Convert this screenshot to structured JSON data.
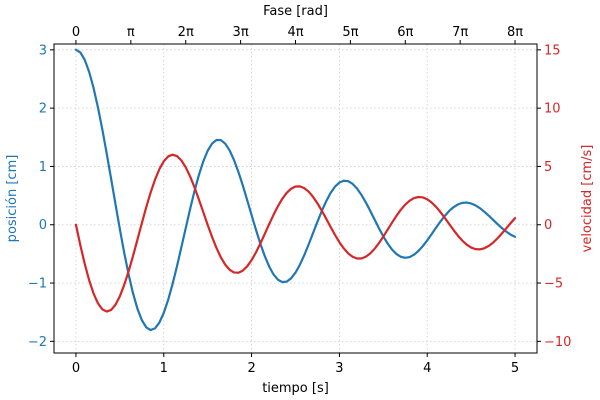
{
  "chart_data": {
    "type": "line",
    "grid": true,
    "x": [
      0,
      0.05,
      0.1,
      0.15,
      0.2,
      0.25,
      0.3,
      0.35,
      0.4,
      0.45,
      0.5,
      0.55,
      0.6,
      0.65,
      0.7,
      0.75,
      0.8,
      0.85,
      0.9,
      0.95,
      1.0,
      1.05,
      1.1,
      1.15,
      1.2,
      1.25,
      1.3,
      1.35,
      1.4,
      1.45,
      1.5,
      1.55,
      1.6,
      1.65,
      1.7,
      1.75,
      1.8,
      1.85,
      1.9,
      1.95,
      2.0,
      2.05,
      2.1,
      2.15,
      2.2,
      2.25,
      2.3,
      2.35,
      2.4,
      2.45,
      2.5,
      2.55,
      2.6,
      2.65,
      2.7,
      2.75,
      2.8,
      2.85,
      2.9,
      2.95,
      3.0,
      3.05,
      3.1,
      3.15,
      3.2,
      3.25,
      3.3,
      3.35,
      3.4,
      3.45,
      3.5,
      3.55,
      3.6,
      3.65,
      3.7,
      3.75,
      3.8,
      3.85,
      3.9,
      3.95,
      4.0,
      4.05,
      4.1,
      4.15,
      4.2,
      4.25,
      4.3,
      4.35,
      4.4,
      4.45,
      4.5,
      4.55,
      4.6,
      4.65,
      4.7,
      4.75,
      4.8,
      4.85,
      4.9,
      4.95,
      5.0
    ],
    "xlabel": "tiempo [s]",
    "xlim": [
      -0.25,
      5.25
    ],
    "x_ticks": [
      "0",
      "1",
      "2",
      "3",
      "4",
      "5"
    ],
    "x_ticks_values": [
      0,
      1,
      2,
      3,
      4,
      5
    ],
    "secondary_x": {
      "label": "Fase [rad]",
      "ticks": [
        "0",
        "π",
        "2π",
        "3π",
        "4π",
        "5π",
        "6π",
        "7π",
        "8π"
      ]
    },
    "series": [
      {
        "name": "posición",
        "axis": "left",
        "color": "#1f77b4",
        "values": [
          3.0,
          2.956,
          2.828,
          2.622,
          2.348,
          2.016,
          1.637,
          1.224,
          0.792,
          0.354,
          -0.076,
          -0.484,
          -0.855,
          -1.177,
          -1.44,
          -1.636,
          -1.759,
          -1.806,
          -1.778,
          -1.678,
          -1.512,
          -1.288,
          -1.018,
          -0.714,
          -0.389,
          -0.057,
          0.27,
          0.578,
          0.854,
          1.087,
          1.269,
          1.392,
          1.453,
          1.452,
          1.39,
          1.274,
          1.109,
          0.905,
          0.673,
          0.422,
          0.165,
          -0.088,
          -0.326,
          -0.538,
          -0.716,
          -0.853,
          -0.943,
          -0.984,
          -0.975,
          -0.919,
          -0.821,
          -0.686,
          -0.521,
          -0.337,
          -0.142,
          0.052,
          0.238,
          0.405,
          0.546,
          0.654,
          0.724,
          0.755,
          0.747,
          0.701,
          0.622,
          0.515,
          0.385,
          0.241,
          0.09,
          -0.06,
          -0.2,
          -0.324,
          -0.427,
          -0.503,
          -0.55,
          -0.567,
          -0.554,
          -0.514,
          -0.45,
          -0.366,
          -0.268,
          -0.161,
          -0.051,
          0.055,
          0.152,
          0.236,
          0.302,
          0.349,
          0.375,
          0.38,
          0.365,
          0.332,
          0.284,
          0.224,
          0.156,
          0.084,
          0.012,
          -0.057,
          -0.118,
          -0.169,
          -0.207
        ]
      },
      {
        "name": "velocidad",
        "axis": "right",
        "color": "#d62728",
        "values": [
          0.0,
          -1.756,
          -3.358,
          -4.751,
          -5.888,
          -6.73,
          -7.253,
          -7.445,
          -7.309,
          -6.861,
          -6.129,
          -5.153,
          -3.982,
          -2.672,
          -1.282,
          0.127,
          1.492,
          2.755,
          3.861,
          4.768,
          5.441,
          5.857,
          6.006,
          5.889,
          5.521,
          4.926,
          4.14,
          3.204,
          2.166,
          1.076,
          -0.013,
          -1.051,
          -1.99,
          -2.792,
          -3.424,
          -3.862,
          -4.093,
          -4.115,
          -3.934,
          -3.566,
          -3.035,
          -2.37,
          -1.608,
          -0.789,
          0.044,
          0.851,
          1.591,
          2.229,
          2.736,
          3.09,
          3.277,
          3.293,
          3.142,
          2.835,
          2.392,
          1.836,
          1.197,
          0.508,
          -0.196,
          -0.876,
          -1.499,
          -2.034,
          -2.457,
          -2.748,
          -2.895,
          -2.894,
          -2.748,
          -2.468,
          -2.07,
          -1.577,
          -1.016,
          -0.416,
          0.19,
          0.769,
          1.29,
          1.729,
          2.066,
          2.286,
          2.379,
          2.343,
          2.183,
          1.908,
          1.536,
          1.087,
          0.587,
          0.063,
          -0.455,
          -0.941,
          -1.366,
          -1.71,
          -1.955,
          -2.09,
          -2.111,
          -2.018,
          -1.82,
          -1.531,
          -1.168,
          -0.752,
          -0.308,
          0.139,
          0.564
        ]
      }
    ],
    "y_left": {
      "label": "posición [cm]",
      "ylim": [
        -2.2,
        3.1
      ],
      "ticks": [
        "−2",
        "−1",
        "0",
        "1",
        "2",
        "3"
      ],
      "ticks_values": [
        -2,
        -1,
        0,
        1,
        2,
        3
      ],
      "color": "#1f77b4"
    },
    "y_right": {
      "label": "velocidad [cm/s]",
      "ylim": [
        -11,
        15.5
      ],
      "ticks": [
        "−10",
        "−5",
        "0",
        "5",
        "10",
        "15"
      ],
      "ticks_values": [
        -10,
        -5,
        0,
        5,
        10,
        15
      ],
      "color": "#d62728"
    }
  }
}
